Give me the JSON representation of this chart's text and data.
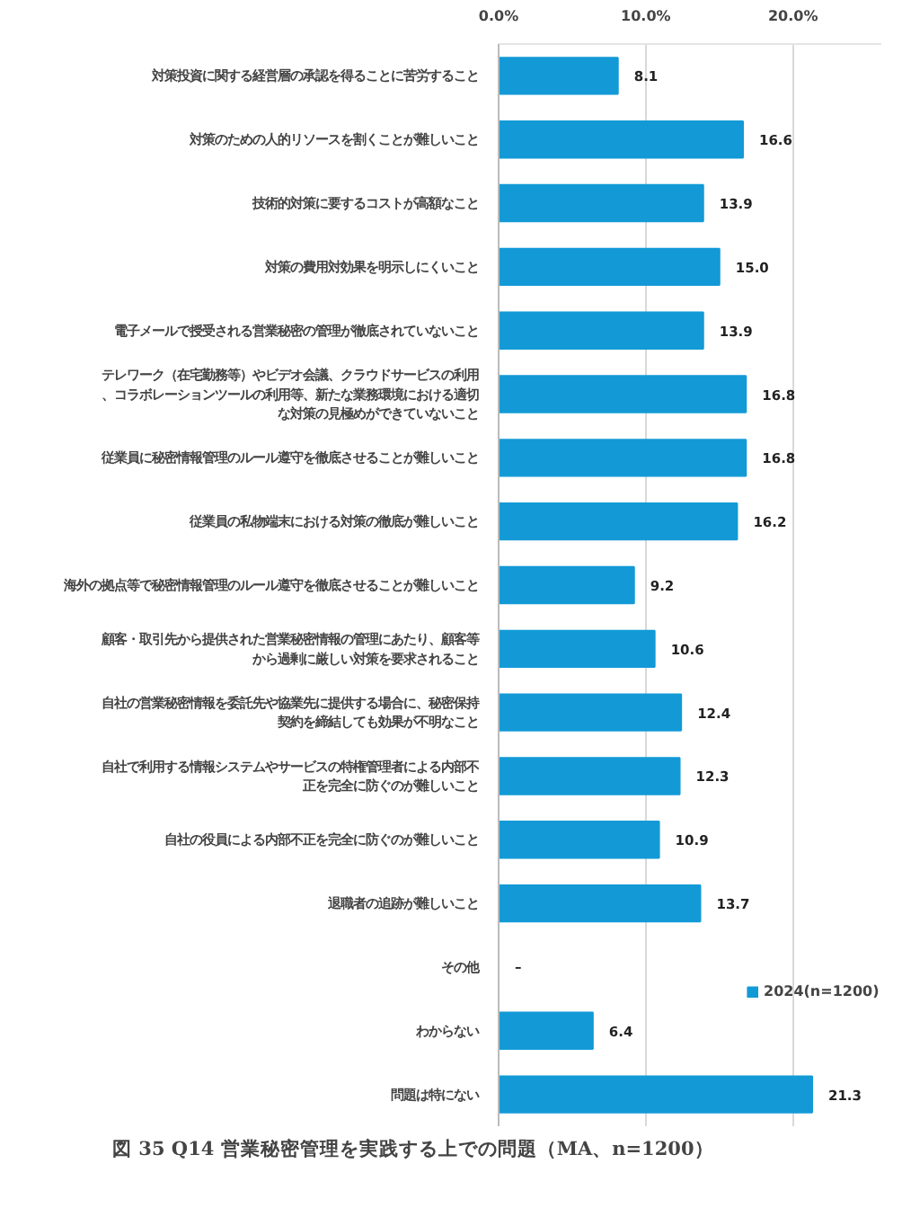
{
  "chart_data": {
    "type": "bar",
    "orientation": "horizontal",
    "title": "図 35 Q14 営業秘密管理を実践する上での問題（MA、n=1200）",
    "categories": [
      "対策投資に関する経営層の承認を得ることに苦労すること",
      "対策のための人的リソースを割くことが難しいこと",
      "技術的対策に要するコストが高額なこと",
      "対策の費用対効果を明示しにくいこと",
      "電子メールで授受される営業秘密の管理が徹底されていないこと",
      "テレワーク（在宅勤務等）やビデオ会議、クラウドサービスの利用、コラボレーションツールの利用等、新たな業務環境における適切な対策の見極めができていないこと",
      "従業員に秘密情報管理のルール遵守を徹底させることが難しいこと",
      "従業員の私物端末における対策の徹底が難しいこと",
      "海外の拠点等で秘密情報管理のルール遵守を徹底させることが難しいこと",
      "顧客・取引先から提供された営業秘密情報の管理にあたり、顧客等から過剰に厳しい対策を要求されること",
      "自社の営業秘密情報を委託先や協業先に提供する場合に、秘密保持契約を締結しても効果が不明なこと",
      "自社で利用する情報システムやサービスの特権管理者による内部不正を完全に防ぐのが難しいこと",
      "自社の役員による内部不正を完全に防ぐのが難しいこと",
      "退職者の追跡が難しいこと",
      "その他",
      "わからない",
      "問題は特にない"
    ],
    "series": [
      {
        "name": "2024(n=1200)",
        "color": "#139ad6",
        "values": [
          8.1,
          16.6,
          13.9,
          15.0,
          13.9,
          16.8,
          16.8,
          16.2,
          9.2,
          10.6,
          12.4,
          12.3,
          10.9,
          13.7,
          null,
          6.4,
          21.3
        ],
        "value_labels": [
          "8.1",
          "16.6",
          "13.9",
          "15.0",
          "13.9",
          "16.8",
          "16.8",
          "16.2",
          "9.2",
          "10.6",
          "12.4",
          "12.3",
          "10.9",
          "13.7",
          "–",
          "6.4",
          "21.3"
        ]
      }
    ],
    "xlim": [
      0,
      26
    ],
    "xticks": [
      {
        "value": 0,
        "label": "0.0%"
      },
      {
        "value": 10,
        "label": "10.0%"
      },
      {
        "value": 20,
        "label": "20.0%"
      }
    ],
    "grid": "x",
    "legend": "bottom right"
  }
}
